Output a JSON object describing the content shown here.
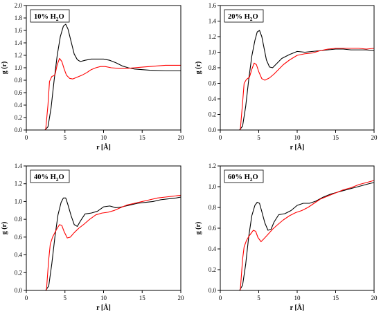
{
  "chart_data": [
    {
      "type": "line",
      "title": "10% H2O",
      "title_parts": {
        "pre": "10% H",
        "sub": "2",
        "post": "O"
      },
      "xlabel": "r [Å]",
      "ylabel": "g (r)",
      "xlim": [
        0,
        20
      ],
      "ylim": [
        0,
        2.0
      ],
      "xticks": [
        "0",
        "5",
        "10",
        "15",
        "20"
      ],
      "yticks": [
        "0.0",
        "0.2",
        "0.4",
        "0.6",
        "0.8",
        "1.0",
        "1.2",
        "1.4",
        "1.6",
        "1.8",
        "2.0"
      ],
      "grid": false,
      "series": [
        {
          "color": "#000000",
          "x": [
            0,
            2.4,
            2.8,
            3.2,
            3.6,
            4.0,
            4.4,
            4.8,
            5.1,
            5.4,
            5.8,
            6.2,
            6.6,
            7.0,
            7.6,
            8.4,
            9.2,
            10.0,
            10.8,
            11.6,
            12.4,
            13.2,
            14.0,
            15.0,
            16.0,
            18.0,
            20.0
          ],
          "y": [
            0,
            0,
            0.05,
            0.35,
            0.8,
            1.2,
            1.5,
            1.67,
            1.7,
            1.62,
            1.42,
            1.22,
            1.13,
            1.1,
            1.12,
            1.14,
            1.14,
            1.14,
            1.12,
            1.08,
            1.03,
            1.0,
            0.98,
            0.97,
            0.96,
            0.95,
            0.95
          ]
        },
        {
          "color": "#ff0000",
          "x": [
            0,
            2.5,
            2.8,
            3.0,
            3.3,
            3.7,
            4.0,
            4.3,
            4.6,
            4.9,
            5.2,
            5.6,
            6.0,
            6.6,
            7.2,
            7.8,
            8.4,
            9.0,
            9.6,
            10.2,
            11.0,
            12.0,
            13.0,
            14.0,
            15.0,
            16.0,
            17.0,
            18.0,
            19.0,
            20.0
          ],
          "y": [
            0,
            0,
            0.4,
            0.78,
            0.86,
            0.88,
            1.05,
            1.15,
            1.1,
            0.98,
            0.88,
            0.83,
            0.82,
            0.85,
            0.88,
            0.92,
            0.97,
            1.0,
            1.02,
            1.02,
            1.0,
            0.99,
            0.99,
            1.0,
            1.01,
            1.02,
            1.03,
            1.04,
            1.04,
            1.04
          ]
        }
      ]
    },
    {
      "type": "line",
      "title": "20% H2O",
      "title_parts": {
        "pre": "20% H",
        "sub": "2",
        "post": "O"
      },
      "xlabel": "r [Å]",
      "ylabel": "g (r)",
      "xlim": [
        0,
        20
      ],
      "ylim": [
        0,
        1.6
      ],
      "xticks": [
        "0",
        "5",
        "10",
        "15",
        "20"
      ],
      "yticks": [
        "0.0",
        "0.2",
        "0.4",
        "0.6",
        "0.8",
        "1.0",
        "1.2",
        "1.4",
        "1.6"
      ],
      "grid": false,
      "series": [
        {
          "color": "#000000",
          "x": [
            0,
            2.5,
            2.9,
            3.3,
            3.7,
            4.1,
            4.5,
            4.8,
            5.1,
            5.4,
            5.7,
            6.0,
            6.4,
            6.8,
            7.4,
            8.0,
            9.0,
            10.0,
            11.0,
            12.0,
            13.0,
            14.0,
            15.0,
            16.0,
            17.0,
            18.0,
            19.0,
            20.0
          ],
          "y": [
            0,
            0,
            0.05,
            0.3,
            0.65,
            0.95,
            1.15,
            1.26,
            1.28,
            1.2,
            1.05,
            0.9,
            0.81,
            0.8,
            0.86,
            0.92,
            0.97,
            1.01,
            1.0,
            1.01,
            1.02,
            1.03,
            1.04,
            1.04,
            1.03,
            1.03,
            1.03,
            1.02
          ]
        },
        {
          "color": "#ff0000",
          "x": [
            0,
            2.6,
            2.9,
            3.1,
            3.4,
            3.8,
            4.1,
            4.4,
            4.7,
            5.0,
            5.4,
            5.8,
            6.4,
            7.0,
            7.6,
            8.2,
            9.0,
            10.0,
            11.0,
            12.0,
            13.0,
            14.0,
            15.0,
            16.0,
            17.0,
            18.0,
            19.0,
            20.0
          ],
          "y": [
            0,
            0,
            0.35,
            0.6,
            0.65,
            0.68,
            0.78,
            0.86,
            0.84,
            0.75,
            0.66,
            0.64,
            0.67,
            0.72,
            0.78,
            0.84,
            0.9,
            0.96,
            0.98,
            0.99,
            1.02,
            1.04,
            1.05,
            1.05,
            1.05,
            1.05,
            1.04,
            1.05
          ]
        }
      ]
    },
    {
      "type": "line",
      "title": "40% H2O",
      "title_parts": {
        "pre": "40% H",
        "sub": "2",
        "post": "O"
      },
      "xlabel": "r [Å]",
      "ylabel": "g (r)",
      "xlim": [
        0,
        20
      ],
      "ylim": [
        0,
        1.4
      ],
      "xticks": [
        "0",
        "5",
        "10",
        "15",
        "20"
      ],
      "yticks": [
        "0.0",
        "0.2",
        "0.4",
        "0.6",
        "0.8",
        "1.0",
        "1.2",
        "1.4"
      ],
      "grid": false,
      "series": [
        {
          "color": "#000000",
          "x": [
            0,
            2.5,
            2.9,
            3.3,
            3.7,
            4.1,
            4.5,
            4.8,
            5.1,
            5.4,
            5.8,
            6.2,
            6.6,
            7.0,
            7.6,
            8.4,
            9.2,
            10.0,
            10.8,
            11.6,
            12.4,
            13.4,
            14.4,
            15.4,
            16.4,
            17.4,
            18.4,
            19.4,
            20.0
          ],
          "y": [
            0,
            0,
            0.05,
            0.3,
            0.6,
            0.85,
            0.99,
            1.04,
            1.04,
            0.96,
            0.84,
            0.74,
            0.72,
            0.78,
            0.86,
            0.87,
            0.89,
            0.94,
            0.95,
            0.93,
            0.94,
            0.96,
            0.98,
            0.99,
            1.0,
            1.02,
            1.03,
            1.04,
            1.05
          ]
        },
        {
          "color": "#ff0000",
          "x": [
            0,
            2.6,
            2.9,
            3.1,
            3.4,
            3.7,
            4.0,
            4.3,
            4.6,
            4.9,
            5.3,
            5.7,
            6.2,
            6.8,
            7.4,
            8.2,
            9.0,
            9.8,
            10.6,
            11.4,
            12.2,
            13.0,
            14.0,
            15.0,
            16.0,
            17.0,
            18.0,
            19.0,
            20.0
          ],
          "y": [
            0,
            0,
            0.35,
            0.52,
            0.6,
            0.65,
            0.7,
            0.74,
            0.73,
            0.66,
            0.59,
            0.6,
            0.65,
            0.7,
            0.74,
            0.8,
            0.85,
            0.87,
            0.88,
            0.9,
            0.93,
            0.96,
            0.98,
            1.0,
            1.02,
            1.04,
            1.05,
            1.06,
            1.07
          ]
        }
      ]
    },
    {
      "type": "line",
      "title": "60% H2O",
      "title_parts": {
        "pre": "60% H",
        "sub": "2",
        "post": "O"
      },
      "xlabel": "r [Å]",
      "ylabel": "g (r)",
      "xlim": [
        0,
        20
      ],
      "ylim": [
        0,
        1.2
      ],
      "xticks": [
        "0",
        "5",
        "10",
        "15",
        "20"
      ],
      "yticks": [
        "0.0",
        "0.2",
        "0.4",
        "0.6",
        "0.8",
        "1.0",
        "1.2"
      ],
      "grid": false,
      "series": [
        {
          "color": "#000000",
          "x": [
            0,
            2.5,
            2.9,
            3.3,
            3.7,
            4.1,
            4.5,
            4.8,
            5.1,
            5.4,
            5.8,
            6.2,
            6.6,
            7.0,
            7.6,
            8.4,
            9.2,
            10.0,
            10.8,
            11.6,
            12.4,
            13.4,
            14.4,
            15.4,
            16.4,
            17.4,
            18.4,
            19.4,
            20.0
          ],
          "y": [
            0,
            0,
            0.05,
            0.25,
            0.52,
            0.72,
            0.82,
            0.85,
            0.84,
            0.76,
            0.65,
            0.58,
            0.59,
            0.66,
            0.73,
            0.74,
            0.77,
            0.82,
            0.84,
            0.84,
            0.86,
            0.9,
            0.93,
            0.95,
            0.97,
            0.99,
            1.01,
            1.03,
            1.04
          ]
        },
        {
          "color": "#ff0000",
          "x": [
            0,
            2.6,
            2.9,
            3.1,
            3.4,
            3.7,
            4.0,
            4.3,
            4.6,
            4.9,
            5.3,
            5.7,
            6.2,
            6.8,
            7.4,
            8.2,
            9.0,
            9.8,
            10.6,
            11.4,
            12.2,
            13.0,
            14.0,
            15.0,
            16.0,
            17.0,
            18.0,
            19.0,
            20.0
          ],
          "y": [
            0,
            0,
            0.3,
            0.42,
            0.48,
            0.52,
            0.55,
            0.58,
            0.57,
            0.51,
            0.47,
            0.5,
            0.54,
            0.59,
            0.63,
            0.68,
            0.72,
            0.75,
            0.77,
            0.8,
            0.84,
            0.88,
            0.91,
            0.94,
            0.97,
            0.99,
            1.02,
            1.04,
            1.06
          ]
        }
      ]
    }
  ]
}
